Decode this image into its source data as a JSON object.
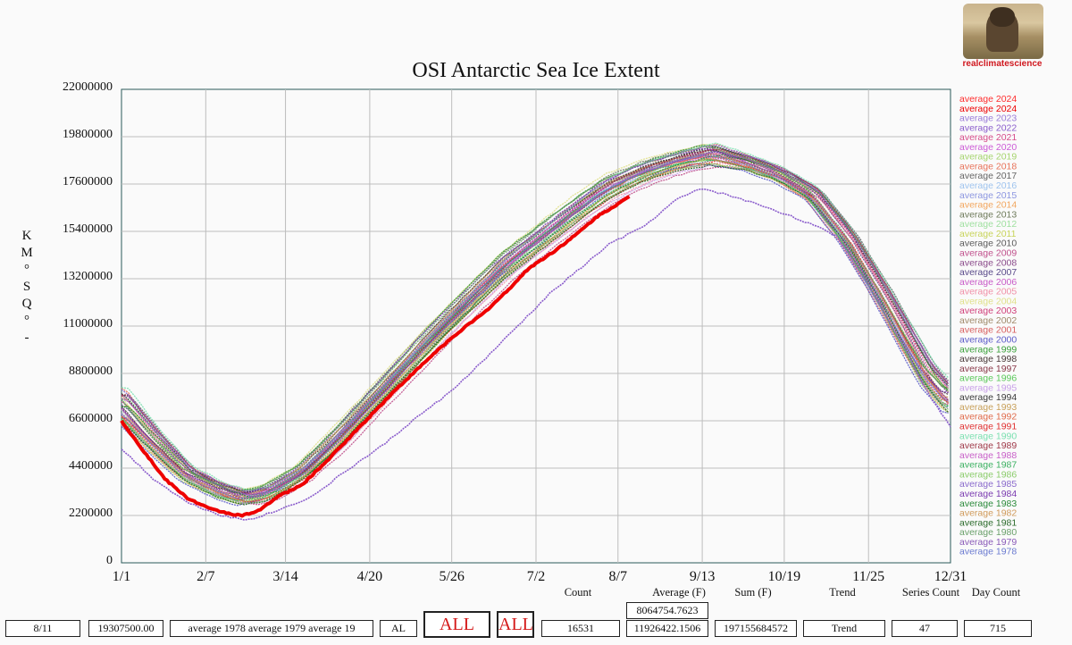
{
  "chart_data": {
    "type": "line",
    "title": "OSI Antarctic Sea Ice Extent",
    "ylabel": "KM°SQ°-",
    "ylabel_chars": [
      "K",
      "M",
      "°",
      "S",
      "Q",
      "°",
      "-"
    ],
    "ylim": [
      0,
      22000000
    ],
    "y_ticks": [
      "22000000",
      "19800000",
      "17600000",
      "15400000",
      "13200000",
      "11000000",
      "8800000",
      "6600000",
      "4400000",
      "2200000",
      "0"
    ],
    "x_tick_labels": [
      "1/1",
      "2/7",
      "3/14",
      "4/20",
      "5/26",
      "7/2",
      "8/7",
      "9/13",
      "10/19",
      "11/25",
      "12/31"
    ],
    "x_tick_days": [
      1,
      38,
      73,
      110,
      146,
      183,
      219,
      256,
      292,
      329,
      365
    ],
    "grid": true,
    "legend_placement": "right",
    "legend": [
      {
        "label": "average 2024",
        "color": "#ff2d2d"
      },
      {
        "label": "average 2024",
        "color": "#ee0000"
      },
      {
        "label": "average 2023",
        "color": "#9a7bd8"
      },
      {
        "label": "average 2022",
        "color": "#8a5ccc"
      },
      {
        "label": "average 2021",
        "color": "#d64c8a"
      },
      {
        "label": "average 2020",
        "color": "#cc5ad6"
      },
      {
        "label": "average 2019",
        "color": "#a6d46e"
      },
      {
        "label": "average 2018",
        "color": "#e8735a"
      },
      {
        "label": "average 2017",
        "color": "#666666"
      },
      {
        "label": "average 2016",
        "color": "#9ec3ee"
      },
      {
        "label": "average 2015",
        "color": "#8c96e0"
      },
      {
        "label": "average 2014",
        "color": "#f2a65e"
      },
      {
        "label": "average 2013",
        "color": "#6e7a5a"
      },
      {
        "label": "average 2012",
        "color": "#a0e0a0"
      },
      {
        "label": "average 2011",
        "color": "#c8d45a"
      },
      {
        "label": "average 2010",
        "color": "#5a5a5a"
      },
      {
        "label": "average 2009",
        "color": "#c0508c"
      },
      {
        "label": "average 2008",
        "color": "#8a4a8a"
      },
      {
        "label": "average 2007",
        "color": "#5a4a8a"
      },
      {
        "label": "average 2006",
        "color": "#c85ac8"
      },
      {
        "label": "average 2005",
        "color": "#f090a8"
      },
      {
        "label": "average 2004",
        "color": "#e0e08a"
      },
      {
        "label": "average 2003",
        "color": "#d0407a"
      },
      {
        "label": "average 2002",
        "color": "#a08a6a"
      },
      {
        "label": "average 2001",
        "color": "#d86060"
      },
      {
        "label": "average 2000",
        "color": "#5a5ac8"
      },
      {
        "label": "average 1999",
        "color": "#3aa03a"
      },
      {
        "label": "average 1998",
        "color": "#4a3a3a"
      },
      {
        "label": "average 1997",
        "color": "#8a3a4a"
      },
      {
        "label": "average 1996",
        "color": "#5ac85a"
      },
      {
        "label": "average 1995",
        "color": "#c8a0e8"
      },
      {
        "label": "average 1994",
        "color": "#3a3a3a"
      },
      {
        "label": "average 1993",
        "color": "#c8a05a"
      },
      {
        "label": "average 1992",
        "color": "#e06a4a"
      },
      {
        "label": "average 1991",
        "color": "#e03030"
      },
      {
        "label": "average 1990",
        "color": "#7ae0b0"
      },
      {
        "label": "average 1989",
        "color": "#a03a4a"
      },
      {
        "label": "average 1988",
        "color": "#c860c8"
      },
      {
        "label": "average 1987",
        "color": "#3ab060"
      },
      {
        "label": "average 1986",
        "color": "#8acc6a"
      },
      {
        "label": "average 1985",
        "color": "#8a6acc"
      },
      {
        "label": "average 1984",
        "color": "#7a3ab0"
      },
      {
        "label": "average 1983",
        "color": "#2a8a3a"
      },
      {
        "label": "average 1982",
        "color": "#d09a5a"
      },
      {
        "label": "average 1981",
        "color": "#2a6a2a"
      },
      {
        "label": "average 1980",
        "color": "#6aa06a"
      },
      {
        "label": "average 1979",
        "color": "#8a5ab8"
      },
      {
        "label": "average 1978",
        "color": "#6a7ad0"
      }
    ],
    "series_2024_highlight": {
      "name": "average 2024",
      "color": "#ee0000",
      "x_days": [
        1,
        10,
        20,
        30,
        40,
        50,
        54,
        60,
        70,
        80,
        90,
        100,
        110,
        120,
        130,
        140,
        150,
        160,
        170,
        180,
        190,
        200,
        210,
        224
      ],
      "values": [
        6600000,
        5300000,
        3900000,
        3000000,
        2500000,
        2250000,
        2200000,
        2350000,
        3100000,
        3600000,
        4600000,
        5700000,
        6800000,
        7900000,
        8900000,
        9900000,
        10800000,
        11600000,
        12600000,
        13700000,
        14400000,
        15200000,
        16100000,
        17000000
      ]
    },
    "series_2023": {
      "name": "average 2023",
      "color": "#8a5ccc",
      "x_days": [
        1,
        15,
        30,
        45,
        55,
        60,
        70,
        85,
        100,
        115,
        130,
        145,
        160,
        175,
        190,
        205,
        215,
        230,
        245,
        256,
        270,
        285,
        300,
        315,
        330,
        345,
        355,
        365
      ],
      "values": [
        5300000,
        3900000,
        2800000,
        2200000,
        2000000,
        2100000,
        2450000,
        3100000,
        4300000,
        5400000,
        6700000,
        7900000,
        9400000,
        11000000,
        12600000,
        13900000,
        14800000,
        15600000,
        16900000,
        17400000,
        17000000,
        16500000,
        15900000,
        15200000,
        12700000,
        10000000,
        7900000,
        6300000
      ]
    },
    "envelope": {
      "x_days": [
        1,
        15,
        30,
        45,
        55,
        65,
        80,
        95,
        110,
        125,
        140,
        155,
        170,
        185,
        200,
        215,
        230,
        245,
        260,
        275,
        290,
        305,
        320,
        335,
        345,
        355,
        365
      ],
      "upper": [
        9700000,
        7300000,
        5100000,
        4300000,
        4000000,
        4200000,
        5000000,
        6800000,
        8400000,
        10200000,
        12000000,
        13600000,
        15200000,
        16300000,
        17600000,
        18800000,
        19300000,
        19800000,
        20500000,
        19500000,
        18800000,
        17800000,
        15800000,
        13500000,
        12000000,
        10500000,
        9500000
      ],
      "mid": [
        7000000,
        5500000,
        4100000,
        3300000,
        3000000,
        3200000,
        4200000,
        5600000,
        7400000,
        9100000,
        10800000,
        12400000,
        14000000,
        15300000,
        16500000,
        17500000,
        18300000,
        18700000,
        18900000,
        18700000,
        18100000,
        17200000,
        15300000,
        12600000,
        10600000,
        8600000,
        7300000
      ],
      "lower": [
        5300000,
        4300000,
        3100000,
        2400000,
        2100000,
        2300000,
        3100000,
        4400000,
        6000000,
        7600000,
        9200000,
        10700000,
        12100000,
        13300000,
        14500000,
        15700000,
        16600000,
        17300000,
        17600000,
        17600000,
        17200000,
        16200000,
        14000000,
        11200000,
        9000000,
        7100000,
        5900000
      ]
    }
  },
  "logo": {
    "caption": "realclimatescience"
  },
  "summary": {
    "labels": {
      "count": "Count",
      "average": "Average (F)",
      "sum": "Sum (F)",
      "trend": "Trend",
      "series_count": "Series Count",
      "day_count": "Day Count"
    },
    "average_top": "8064754.7623",
    "boxes": {
      "date": "8/11",
      "value": "19307500.00",
      "series": "average 1978 average 1979 average 19",
      "al": "AL",
      "all1": "ALL",
      "all2": "ALL",
      "count": "16531",
      "average": "11926422.1506",
      "sum": "197155684572",
      "trend": "Trend",
      "series_count": "47",
      "day_count": "715"
    }
  }
}
